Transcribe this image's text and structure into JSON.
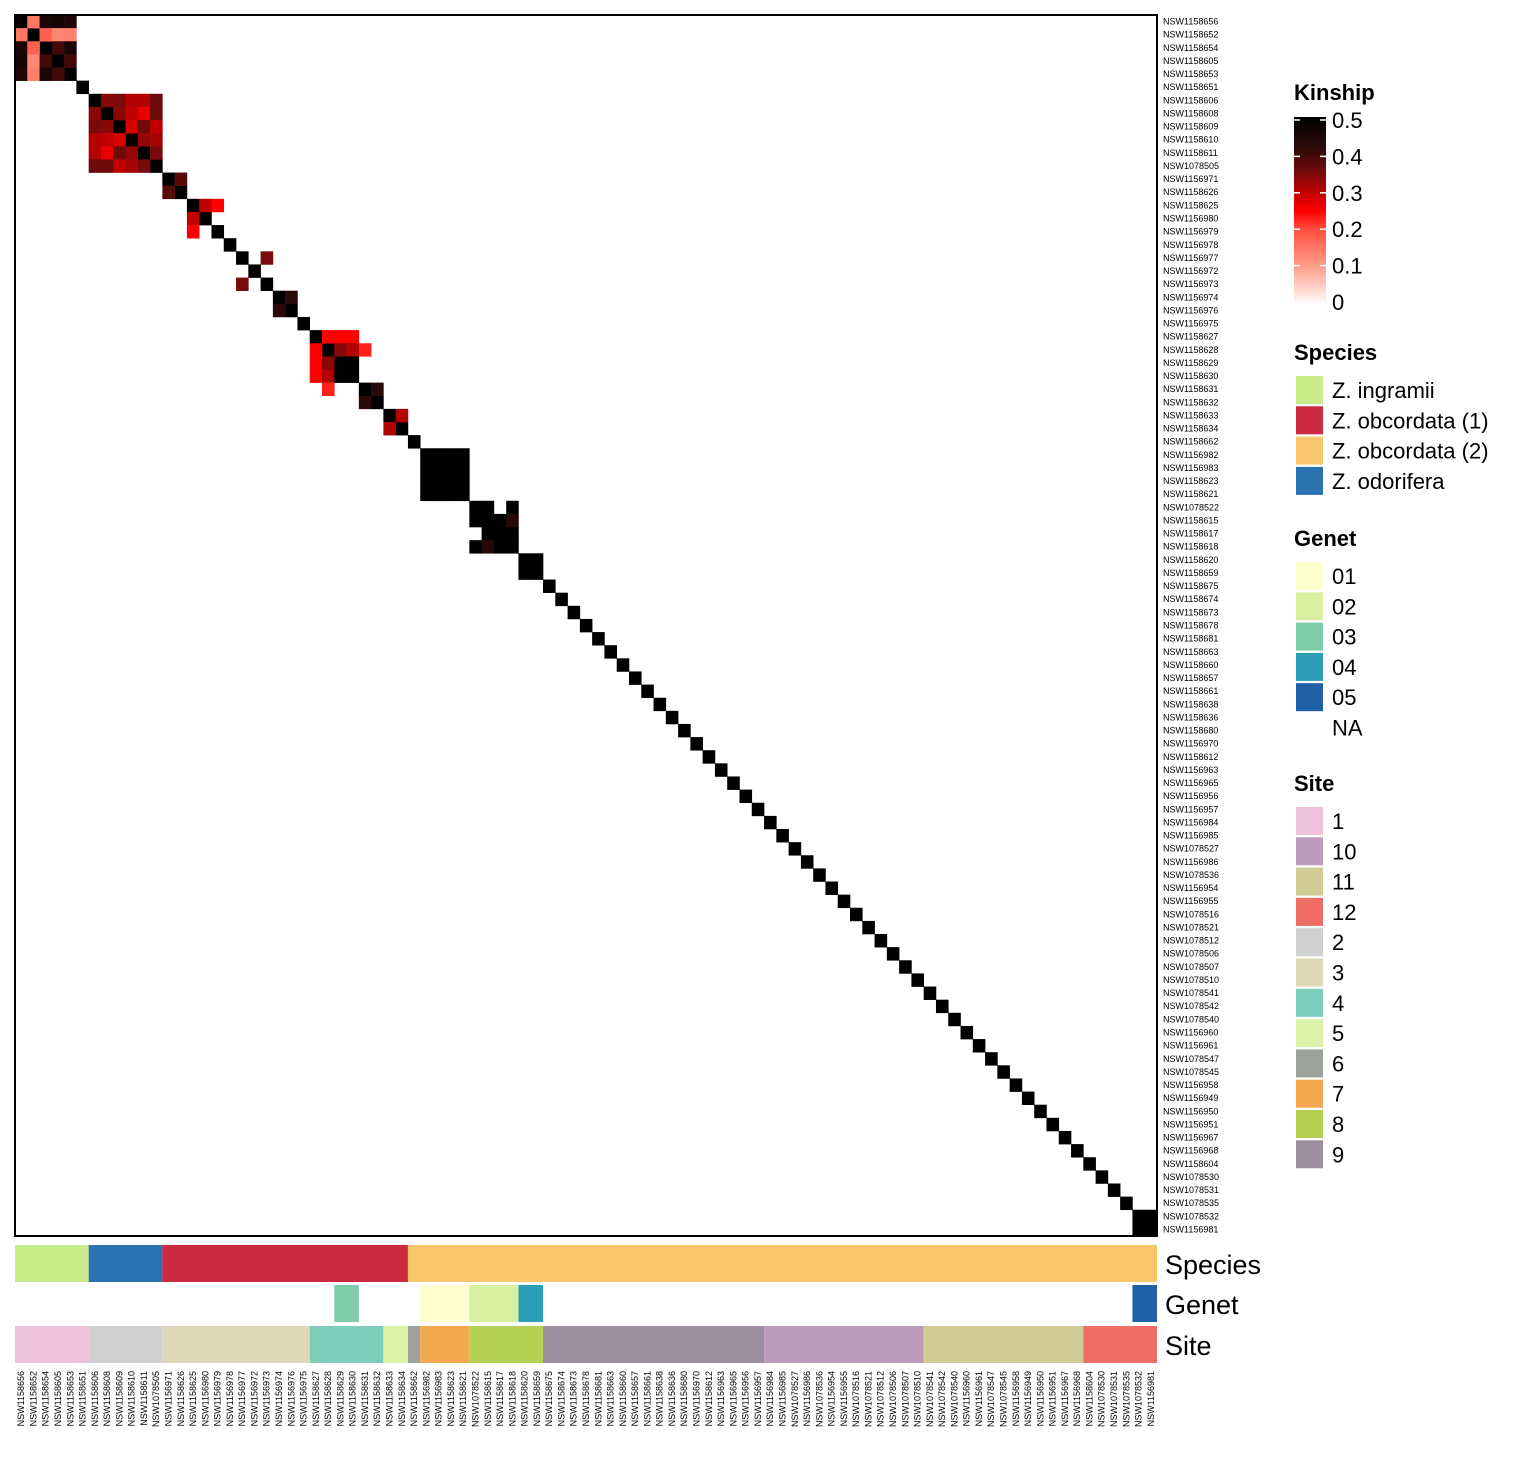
{
  "chart_data": {
    "type": "heatmap",
    "title": "",
    "samples": [
      "NSW1158656",
      "NSW1158652",
      "NSW1158654",
      "NSW1158605",
      "NSW1158653",
      "NSW1158651",
      "NSW1158606",
      "NSW1158608",
      "NSW1158609",
      "NSW1158610",
      "NSW1158611",
      "NSW1078505",
      "NSW1156971",
      "NSW1158626",
      "NSW1158625",
      "NSW1156980",
      "NSW1156979",
      "NSW1156978",
      "NSW1156977",
      "NSW1156972",
      "NSW1156973",
      "NSW1156974",
      "NSW1156976",
      "NSW1156975",
      "NSW1158627",
      "NSW1158628",
      "NSW1158629",
      "NSW1158630",
      "NSW1158631",
      "NSW1158632",
      "NSW1158633",
      "NSW1158634",
      "NSW1158662",
      "NSW1156982",
      "NSW1156983",
      "NSW1158623",
      "NSW1158621",
      "NSW1078522",
      "NSW1158615",
      "NSW1158617",
      "NSW1158618",
      "NSW1158620",
      "NSW1158659",
      "NSW1158675",
      "NSW1158674",
      "NSW1158673",
      "NSW1158678",
      "NSW1158681",
      "NSW1158663",
      "NSW1158660",
      "NSW1158657",
      "NSW1158661",
      "NSW1158638",
      "NSW1158636",
      "NSW1158680",
      "NSW1156970",
      "NSW1158612",
      "NSW1156963",
      "NSW1156965",
      "NSW1156956",
      "NSW1156957",
      "NSW1156984",
      "NSW1156985",
      "NSW1078527",
      "NSW1156986",
      "NSW1078536",
      "NSW1156954",
      "NSW1156955",
      "NSW1078516",
      "NSW1078521",
      "NSW1078512",
      "NSW1078506",
      "NSW1078507",
      "NSW1078510",
      "NSW1078541",
      "NSW1078542",
      "NSW1078540",
      "NSW1156960",
      "NSW1156961",
      "NSW1078547",
      "NSW1078545",
      "NSW1156958",
      "NSW1156949",
      "NSW1156950",
      "NSW1156951",
      "NSW1156967",
      "NSW1156968",
      "NSW1158604",
      "NSW1078530",
      "NSW1078531",
      "NSW1078535",
      "NSW1078532",
      "NSW1156981"
    ],
    "diagonal_value": 0.5,
    "default_value": 0,
    "off_diagonal_note": "symmetric pairs [i, j, kinship] using 1-based sample indices",
    "off_diagonal": [
      [
        1,
        2,
        0.15
      ],
      [
        1,
        3,
        0.45
      ],
      [
        1,
        4,
        0.46
      ],
      [
        1,
        5,
        0.44
      ],
      [
        2,
        3,
        0.18
      ],
      [
        2,
        4,
        0.13
      ],
      [
        2,
        5,
        0.14
      ],
      [
        3,
        4,
        0.4
      ],
      [
        3,
        5,
        0.45
      ],
      [
        4,
        5,
        0.4
      ],
      [
        7,
        8,
        0.34
      ],
      [
        7,
        9,
        0.35
      ],
      [
        7,
        10,
        0.31
      ],
      [
        7,
        11,
        0.31
      ],
      [
        7,
        12,
        0.36
      ],
      [
        8,
        9,
        0.34
      ],
      [
        8,
        10,
        0.3
      ],
      [
        8,
        11,
        0.27
      ],
      [
        8,
        12,
        0.36
      ],
      [
        9,
        10,
        0.28
      ],
      [
        9,
        11,
        0.36
      ],
      [
        9,
        12,
        0.3
      ],
      [
        10,
        11,
        0.33
      ],
      [
        10,
        12,
        0.32
      ],
      [
        11,
        12,
        0.35
      ],
      [
        13,
        14,
        0.38
      ],
      [
        15,
        16,
        0.3
      ],
      [
        15,
        17,
        0.25
      ],
      [
        19,
        21,
        0.35
      ],
      [
        22,
        23,
        0.42
      ],
      [
        25,
        26,
        0.25
      ],
      [
        25,
        27,
        0.25
      ],
      [
        25,
        28,
        0.25
      ],
      [
        26,
        27,
        0.34
      ],
      [
        26,
        28,
        0.31
      ],
      [
        26,
        29,
        0.23
      ],
      [
        27,
        28,
        0.5
      ],
      [
        29,
        30,
        0.42
      ],
      [
        31,
        32,
        0.31
      ],
      [
        34,
        35,
        0.5
      ],
      [
        34,
        36,
        0.5
      ],
      [
        34,
        37,
        0.5
      ],
      [
        35,
        36,
        0.5
      ],
      [
        35,
        37,
        0.5
      ],
      [
        36,
        37,
        0.5
      ],
      [
        38,
        39,
        0.5
      ],
      [
        38,
        41,
        0.5
      ],
      [
        39,
        40,
        0.5
      ],
      [
        39,
        41,
        0.43
      ],
      [
        40,
        41,
        0.5
      ],
      [
        42,
        43,
        0.5
      ],
      [
        92,
        93,
        0.5
      ]
    ],
    "color_scale": {
      "title": "Kinship",
      "range": [
        0,
        0.5
      ],
      "ticks": [
        "0.5",
        "0.4",
        "0.3",
        "0.2",
        "0.1",
        "0"
      ],
      "stops": [
        [
          0,
          "#ffffff"
        ],
        [
          0.1,
          "#ffa08c"
        ],
        [
          0.2,
          "#ff5040"
        ],
        [
          0.25,
          "#ff0000"
        ],
        [
          0.3,
          "#c00000"
        ],
        [
          0.35,
          "#7a0a0a"
        ],
        [
          0.42,
          "#2a0a08"
        ],
        [
          0.5,
          "#000000"
        ]
      ]
    },
    "annotations": [
      {
        "name": "Species",
        "segments": [
          {
            "label": "Z. ingramii",
            "from": 1,
            "to": 6
          },
          {
            "label": "Z. odorifera",
            "from": 7,
            "to": 12
          },
          {
            "label": "Z. obcordata (1)",
            "from": 13,
            "to": 32
          },
          {
            "label": "Z. obcordata (2)",
            "from": 33,
            "to": 93
          }
        ]
      },
      {
        "name": "Genet",
        "segments": [
          {
            "label": "03",
            "from": 27,
            "to": 28
          },
          {
            "label": "01",
            "from": 34,
            "to": 37
          },
          {
            "label": "02",
            "from": 38,
            "to": 41
          },
          {
            "label": "04",
            "from": 42,
            "to": 43
          },
          {
            "label": "05",
            "from": 92,
            "to": 93
          }
        ]
      },
      {
        "name": "Site",
        "segments": [
          {
            "label": "1",
            "from": 1,
            "to": 6
          },
          {
            "label": "2",
            "from": 7,
            "to": 12
          },
          {
            "label": "3",
            "from": 13,
            "to": 24
          },
          {
            "label": "4",
            "from": 25,
            "to": 30
          },
          {
            "label": "5",
            "from": 31,
            "to": 32
          },
          {
            "label": "6",
            "from": 33,
            "to": 33
          },
          {
            "label": "7",
            "from": 34,
            "to": 37
          },
          {
            "label": "8",
            "from": 38,
            "to": 43
          },
          {
            "label": "9",
            "from": 44,
            "to": 61
          },
          {
            "label": "10",
            "from": 62,
            "to": 74
          },
          {
            "label": "11",
            "from": 75,
            "to": 87
          },
          {
            "label": "12",
            "from": 88,
            "to": 93
          }
        ]
      }
    ],
    "legends": [
      {
        "title": "Species",
        "items": [
          {
            "label": "Z. ingramii",
            "color": "#c9eb8a"
          },
          {
            "label": "Z. obcordata (1)",
            "color": "#cb2a40"
          },
          {
            "label": "Z. obcordata (2)",
            "color": "#f9c66b"
          },
          {
            "label": "Z. odorifera",
            "color": "#2b73b0"
          }
        ]
      },
      {
        "title": "Genet",
        "items": [
          {
            "label": "01",
            "color": "#fefecf"
          },
          {
            "label": "02",
            "color": "#d9f0a3"
          },
          {
            "label": "03",
            "color": "#7fcba9"
          },
          {
            "label": "04",
            "color": "#2c9fb7"
          },
          {
            "label": "05",
            "color": "#1f5fa6"
          },
          {
            "label": "NA",
            "color": "#ffffff"
          }
        ]
      },
      {
        "title": "Site",
        "items": [
          {
            "label": "1",
            "color": "#efc2dc"
          },
          {
            "label": "10",
            "color": "#bd9bbb"
          },
          {
            "label": "11",
            "color": "#d1cb98"
          },
          {
            "label": "12",
            "color": "#f06d67"
          },
          {
            "label": "2",
            "color": "#d0d0d0"
          },
          {
            "label": "3",
            "color": "#dcd8b8"
          },
          {
            "label": "4",
            "color": "#7ccdba"
          },
          {
            "label": "5",
            "color": "#daf3a8"
          },
          {
            "label": "6",
            "color": "#9ca199"
          },
          {
            "label": "7",
            "color": "#f3a94f"
          },
          {
            "label": "8",
            "color": "#b6d054"
          },
          {
            "label": "9",
            "color": "#9c8fa0"
          }
        ]
      }
    ]
  }
}
